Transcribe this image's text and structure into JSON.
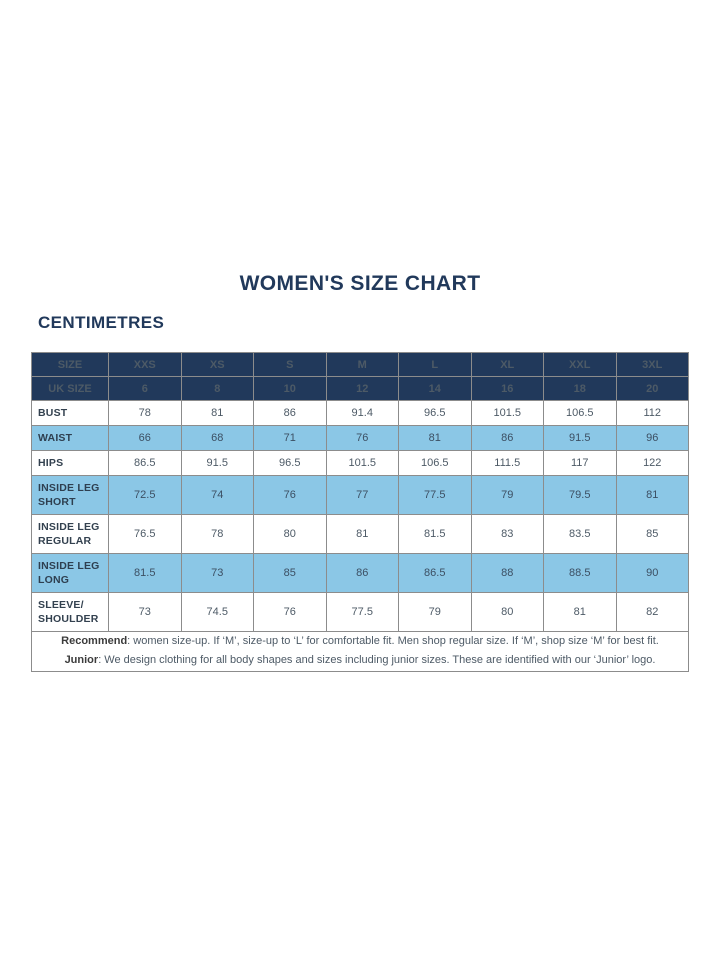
{
  "colors": {
    "navy": "#21395b",
    "highlight_blue": "#8bc7e6",
    "table_border": "#8c8c8c"
  },
  "page": {
    "title": "WOMEN'S SIZE CHART",
    "units_label": "CENTIMETRES"
  },
  "table": {
    "header_rows": [
      {
        "label": "SIZE",
        "values": [
          "XXS",
          "XS",
          "S",
          "M",
          "L",
          "XL",
          "XXL",
          "3XL"
        ]
      },
      {
        "label": "UK SIZE",
        "values": [
          "6",
          "8",
          "10",
          "12",
          "14",
          "16",
          "18",
          "20"
        ]
      }
    ],
    "rows": [
      {
        "label": "BUST",
        "highlight": false,
        "values": [
          "78",
          "81",
          "86",
          "91.4",
          "96.5",
          "101.5",
          "106.5",
          "112"
        ]
      },
      {
        "label": "WAIST",
        "highlight": true,
        "values": [
          "66",
          "68",
          "71",
          "76",
          "81",
          "86",
          "91.5",
          "96"
        ]
      },
      {
        "label": "HIPS",
        "highlight": false,
        "values": [
          "86.5",
          "91.5",
          "96.5",
          "101.5",
          "106.5",
          "111.5",
          "117",
          "122"
        ]
      },
      {
        "label": "INSIDE LEG SHORT",
        "highlight": true,
        "values": [
          "72.5",
          "74",
          "76",
          "77",
          "77.5",
          "79",
          "79.5",
          "81"
        ]
      },
      {
        "label": "INSIDE LEG REGULAR",
        "highlight": false,
        "values": [
          "76.5",
          "78",
          "80",
          "81",
          "81.5",
          "83",
          "83.5",
          "85"
        ]
      },
      {
        "label": "INSIDE LEG LONG",
        "highlight": true,
        "values": [
          "81.5",
          "73",
          "85",
          "86",
          "86.5",
          "88",
          "88.5",
          "90"
        ]
      },
      {
        "label": "SLEEVE/ SHOULDER",
        "highlight": false,
        "values": [
          "73",
          "74.5",
          "76",
          "77.5",
          "79",
          "80",
          "81",
          "82"
        ]
      }
    ],
    "footnote": {
      "recommend_bold": "Recommend",
      "recommend_text": ": women size-up. If ‘M’, size-up to ‘L’ for comfortable fit. Men shop regular size. If ‘M’, shop size ‘M’ for best fit.",
      "junior_bold": "Junior",
      "junior_text": ": We design clothing for all body shapes and sizes including junior sizes. These are identified with our ‘Junior’ logo."
    }
  }
}
